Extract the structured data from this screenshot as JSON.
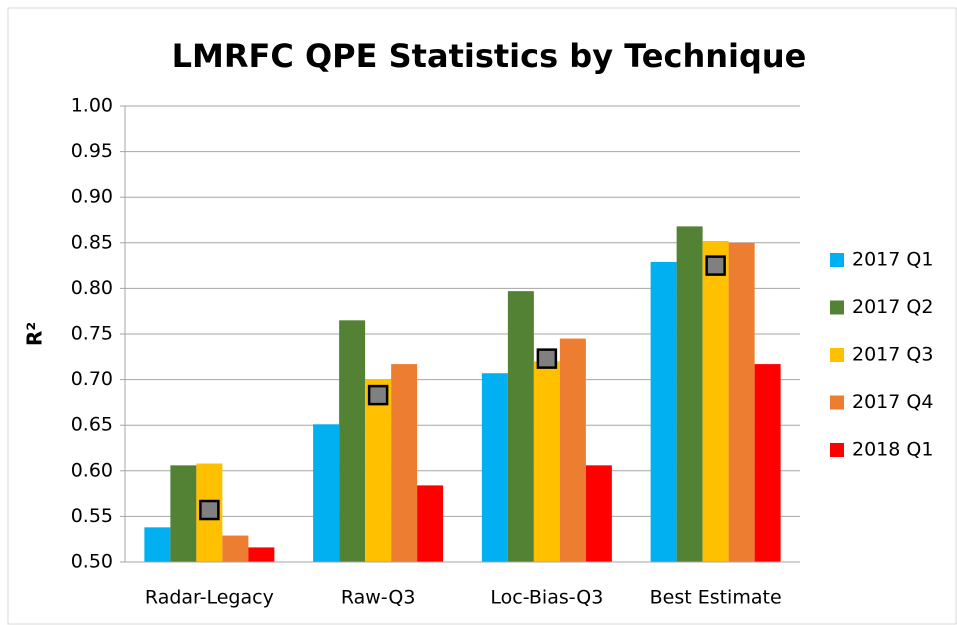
{
  "chart_data": {
    "type": "bar",
    "title": "LMRFC QPE Statistics by Technique",
    "y_label": "R²",
    "categories": [
      "Radar-Legacy",
      "Raw-Q3",
      "Loc-Bias-Q3",
      "Best Estimate"
    ],
    "series": [
      {
        "name": "2017 Q1",
        "color": "#00b0f0",
        "values": [
          0.538,
          0.651,
          0.707,
          0.829
        ]
      },
      {
        "name": "2017 Q2",
        "color": "#548235",
        "values": [
          0.606,
          0.765,
          0.797,
          0.868
        ]
      },
      {
        "name": "2017 Q3",
        "color": "#ffc000",
        "values": [
          0.608,
          0.7,
          0.72,
          0.852
        ]
      },
      {
        "name": "2017 Q4",
        "color": "#ed7d31",
        "values": [
          0.529,
          0.717,
          0.745,
          0.85
        ]
      },
      {
        "name": "2018 Q1",
        "color": "#ff0000",
        "values": [
          0.516,
          0.584,
          0.606,
          0.717
        ]
      }
    ],
    "markers": {
      "color": "#808080",
      "values": [
        0.557,
        0.683,
        0.723,
        0.825
      ]
    },
    "ylim": [
      0.5,
      1.0
    ],
    "yticks": [
      {
        "value": 0.5,
        "label": "0.50"
      },
      {
        "value": 0.55,
        "label": "0.55"
      },
      {
        "value": 0.6,
        "label": "0.60"
      },
      {
        "value": 0.65,
        "label": "0.65"
      },
      {
        "value": 0.7,
        "label": "0.70"
      },
      {
        "value": 0.75,
        "label": "0.75"
      },
      {
        "value": 0.8,
        "label": "0.80"
      },
      {
        "value": 0.85,
        "label": "0.85"
      },
      {
        "value": 0.9,
        "label": "0.90"
      },
      {
        "value": 0.95,
        "label": "0.95"
      },
      {
        "value": 1.0,
        "label": "1.00"
      }
    ],
    "grid": true,
    "legend": "right"
  }
}
